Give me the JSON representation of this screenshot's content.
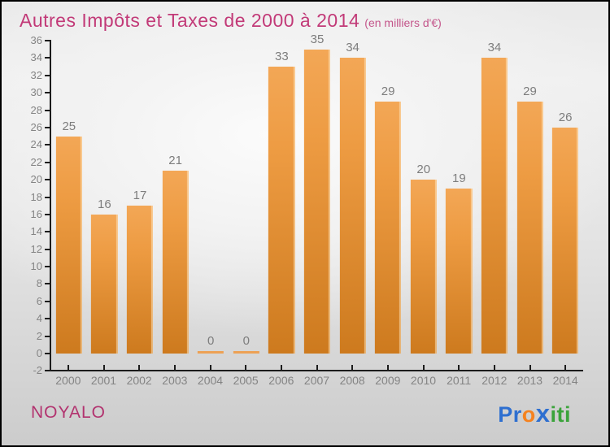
{
  "header": {
    "title": "Autres Impôts et Taxes de 2000 à 2014",
    "subtitle": "(en milliers d'€)"
  },
  "footer": {
    "commune": "NOYALO",
    "logo_name": "Proxiti",
    "logo_letters": [
      {
        "ch": "P",
        "color": "#2e6fd0",
        "x": false
      },
      {
        "ch": "r",
        "color": "#2e6fd0",
        "x": false
      },
      {
        "ch": "o",
        "color": "#f5821f",
        "x": false
      },
      {
        "ch": "x",
        "color": "#2e6fd0",
        "x": true
      },
      {
        "ch": "i",
        "color": "#3ba33b",
        "x": false
      },
      {
        "ch": "t",
        "color": "#3ba33b",
        "x": false
      },
      {
        "ch": "i",
        "color": "#3ba33b",
        "x": false
      }
    ]
  },
  "colors": {
    "title_pink": "#c23a78",
    "commune_pink": "#b2336f",
    "bar_top": "#f3a756",
    "bar_bottom": "#cd7a1e",
    "axis": "#1c1c1c",
    "tick_label_gray": "#848484",
    "value_label_gray": "#7d7d7d"
  },
  "chart_data": {
    "type": "bar",
    "title": "Autres Impôts et Taxes de 2000 à 2014",
    "subtitle": "(en milliers d'€)",
    "xlabel": "",
    "ylabel": "",
    "categories": [
      "2000",
      "2001",
      "2002",
      "2003",
      "2004",
      "2005",
      "2006",
      "2007",
      "2008",
      "2009",
      "2010",
      "2011",
      "2012",
      "2013",
      "2014"
    ],
    "values": [
      25,
      16,
      17,
      21,
      0,
      0,
      33,
      35,
      34,
      29,
      20,
      19,
      34,
      29,
      26
    ],
    "ylim": [
      -2,
      36
    ],
    "y_ticks": [
      36,
      34,
      32,
      30,
      28,
      26,
      24,
      22,
      20,
      18,
      16,
      14,
      12,
      10,
      8,
      6,
      4,
      2,
      0,
      -2
    ],
    "grid": false,
    "legend": "none",
    "bar_value_labels": true
  }
}
